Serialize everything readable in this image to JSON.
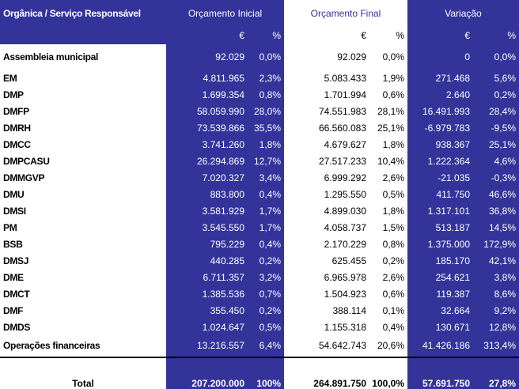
{
  "header": {
    "corner": "Orgânica / Serviço Responsável",
    "groups": [
      "Orçamento Inicial",
      "Orçamento Final",
      "Variação"
    ],
    "sub": [
      "€",
      "%",
      "€",
      "%",
      "€",
      "%"
    ]
  },
  "rows": [
    {
      "label": "Assembleia municipal",
      "oi_eur": "92.029",
      "oi_pct": "0,0%",
      "of_eur": "92.029",
      "of_pct": "0,0%",
      "v_eur": "0",
      "v_pct": "0,0%"
    },
    {
      "label": "EM",
      "oi_eur": "4.811.965",
      "oi_pct": "2,3%",
      "of_eur": "5.083.433",
      "of_pct": "1,9%",
      "v_eur": "271.468",
      "v_pct": "5,6%"
    },
    {
      "label": "DMP",
      "oi_eur": "1.699.354",
      "oi_pct": "0,8%",
      "of_eur": "1.701.994",
      "of_pct": "0,6%",
      "v_eur": "2.640",
      "v_pct": "0,2%"
    },
    {
      "label": "DMFP",
      "oi_eur": "58.059.990",
      "oi_pct": "28,0%",
      "of_eur": "74.551.983",
      "of_pct": "28,1%",
      "v_eur": "16.491.993",
      "v_pct": "28,4%"
    },
    {
      "label": "DMRH",
      "oi_eur": "73.539.866",
      "oi_pct": "35,5%",
      "of_eur": "66.560.083",
      "of_pct": "25,1%",
      "v_eur": "-6.979.783",
      "v_pct": "-9,5%"
    },
    {
      "label": "DMCC",
      "oi_eur": "3.741.260",
      "oi_pct": "1,8%",
      "of_eur": "4.679.627",
      "of_pct": "1,8%",
      "v_eur": "938.367",
      "v_pct": "25,1%"
    },
    {
      "label": "DMPCASU",
      "oi_eur": "26.294.869",
      "oi_pct": "12,7%",
      "of_eur": "27.517.233",
      "of_pct": "10,4%",
      "v_eur": "1.222.364",
      "v_pct": "4,6%"
    },
    {
      "label": "DMMGVP",
      "oi_eur": "7.020.327",
      "oi_pct": "3,4%",
      "of_eur": "6.999.292",
      "of_pct": "2,6%",
      "v_eur": "-21.035",
      "v_pct": "-0,3%"
    },
    {
      "label": "DMU",
      "oi_eur": "883.800",
      "oi_pct": "0,4%",
      "of_eur": "1.295.550",
      "of_pct": "0,5%",
      "v_eur": "411.750",
      "v_pct": "46,6%"
    },
    {
      "label": "DMSI",
      "oi_eur": "3.581.929",
      "oi_pct": "1,7%",
      "of_eur": "4.899.030",
      "of_pct": "1,8%",
      "v_eur": "1.317.101",
      "v_pct": "36,8%"
    },
    {
      "label": "PM",
      "oi_eur": "3.545.550",
      "oi_pct": "1,7%",
      "of_eur": "4.058.737",
      "of_pct": "1,5%",
      "v_eur": "513.187",
      "v_pct": "14,5%"
    },
    {
      "label": "BSB",
      "oi_eur": "795.229",
      "oi_pct": "0,4%",
      "of_eur": "2.170.229",
      "of_pct": "0,8%",
      "v_eur": "1.375.000",
      "v_pct": "172,9%"
    },
    {
      "label": "DMSJ",
      "oi_eur": "440.285",
      "oi_pct": "0,2%",
      "of_eur": "625.455",
      "of_pct": "0,2%",
      "v_eur": "185.170",
      "v_pct": "42,1%"
    },
    {
      "label": "DME",
      "oi_eur": "6.711.357",
      "oi_pct": "3,2%",
      "of_eur": "6.965.978",
      "of_pct": "2,6%",
      "v_eur": "254.621",
      "v_pct": "3,8%"
    },
    {
      "label": "DMCT",
      "oi_eur": "1.385.536",
      "oi_pct": "0,7%",
      "of_eur": "1.504.923",
      "of_pct": "0,6%",
      "v_eur": "119.387",
      "v_pct": "8,6%"
    },
    {
      "label": "DMF",
      "oi_eur": "355.450",
      "oi_pct": "0,2%",
      "of_eur": "388.114",
      "of_pct": "0,1%",
      "v_eur": "32.664",
      "v_pct": "9,2%"
    },
    {
      "label": "DMDS",
      "oi_eur": "1.024.647",
      "oi_pct": "0,5%",
      "of_eur": "1.155.318",
      "of_pct": "0,4%",
      "v_eur": "130.671",
      "v_pct": "12,8%"
    },
    {
      "label": "Operações financeiras",
      "oi_eur": "13.216.557",
      "oi_pct": "6,4%",
      "of_eur": "54.642.743",
      "of_pct": "20,6%",
      "v_eur": "41.426.186",
      "v_pct": "313,4%"
    }
  ],
  "total": {
    "label": "Total",
    "oi_eur": "207.200.000",
    "oi_pct": "100%",
    "of_eur": "264.891.750",
    "of_pct": "100,0%",
    "v_eur": "57.691.750",
    "v_pct": "27,8%"
  },
  "colors": {
    "accent": "#33339a",
    "text_on_accent": "#ffffff",
    "header_white_text": "#33339a"
  }
}
